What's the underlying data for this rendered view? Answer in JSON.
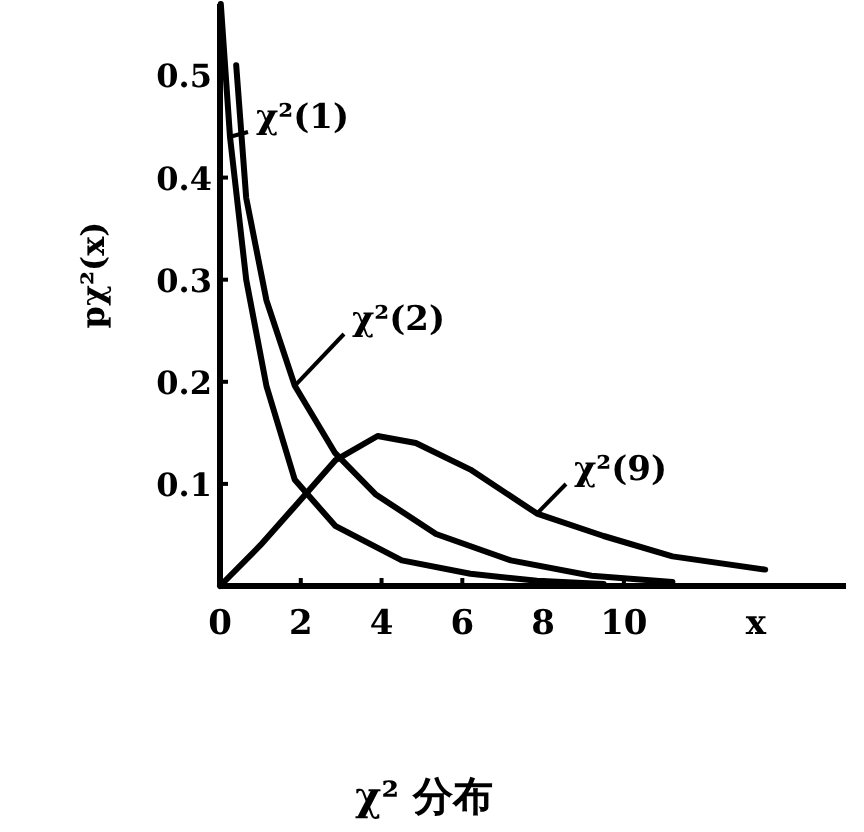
{
  "chart_data": {
    "type": "line",
    "title": "χ² 分布",
    "xlabel": "x",
    "ylabel": "pχ²(x)",
    "xlim": [
      0,
      15.5
    ],
    "ylim": [
      0,
      0.57
    ],
    "xticks": [
      0,
      2,
      4,
      6,
      8,
      10
    ],
    "yticks": [
      0.1,
      0.2,
      0.3,
      0.4,
      0.5
    ],
    "grid": false,
    "marker": "none",
    "line_style": "solid",
    "series": [
      {
        "name": "χ²(1)",
        "color": "#000000",
        "x": [
          0.02,
          0.25,
          0.65,
          1.15,
          1.85,
          2.85,
          4.5,
          6.2,
          7.85,
          9.5
        ],
        "values": [
          0.57,
          0.44,
          0.3,
          0.196,
          0.104,
          0.059,
          0.025,
          0.012,
          0.005,
          0.002
        ]
      },
      {
        "name": "χ²(2)",
        "color": "#000000",
        "x": [
          0.4,
          0.65,
          1.15,
          1.85,
          2.85,
          3.85,
          5.35,
          7.2,
          9.2,
          11.2
        ],
        "values": [
          0.51,
          0.38,
          0.28,
          0.196,
          0.13,
          0.09,
          0.051,
          0.025,
          0.01,
          0.004
        ]
      },
      {
        "name": "χ²(9)",
        "color": "#000000",
        "x": [
          0,
          1,
          1.85,
          2.85,
          3.9,
          4.85,
          6.2,
          7.85,
          9.5,
          11.2,
          13.5
        ],
        "values": [
          0,
          0.04,
          0.078,
          0.123,
          0.147,
          0.14,
          0.114,
          0.071,
          0.049,
          0.029,
          0.016
        ]
      }
    ]
  }
}
